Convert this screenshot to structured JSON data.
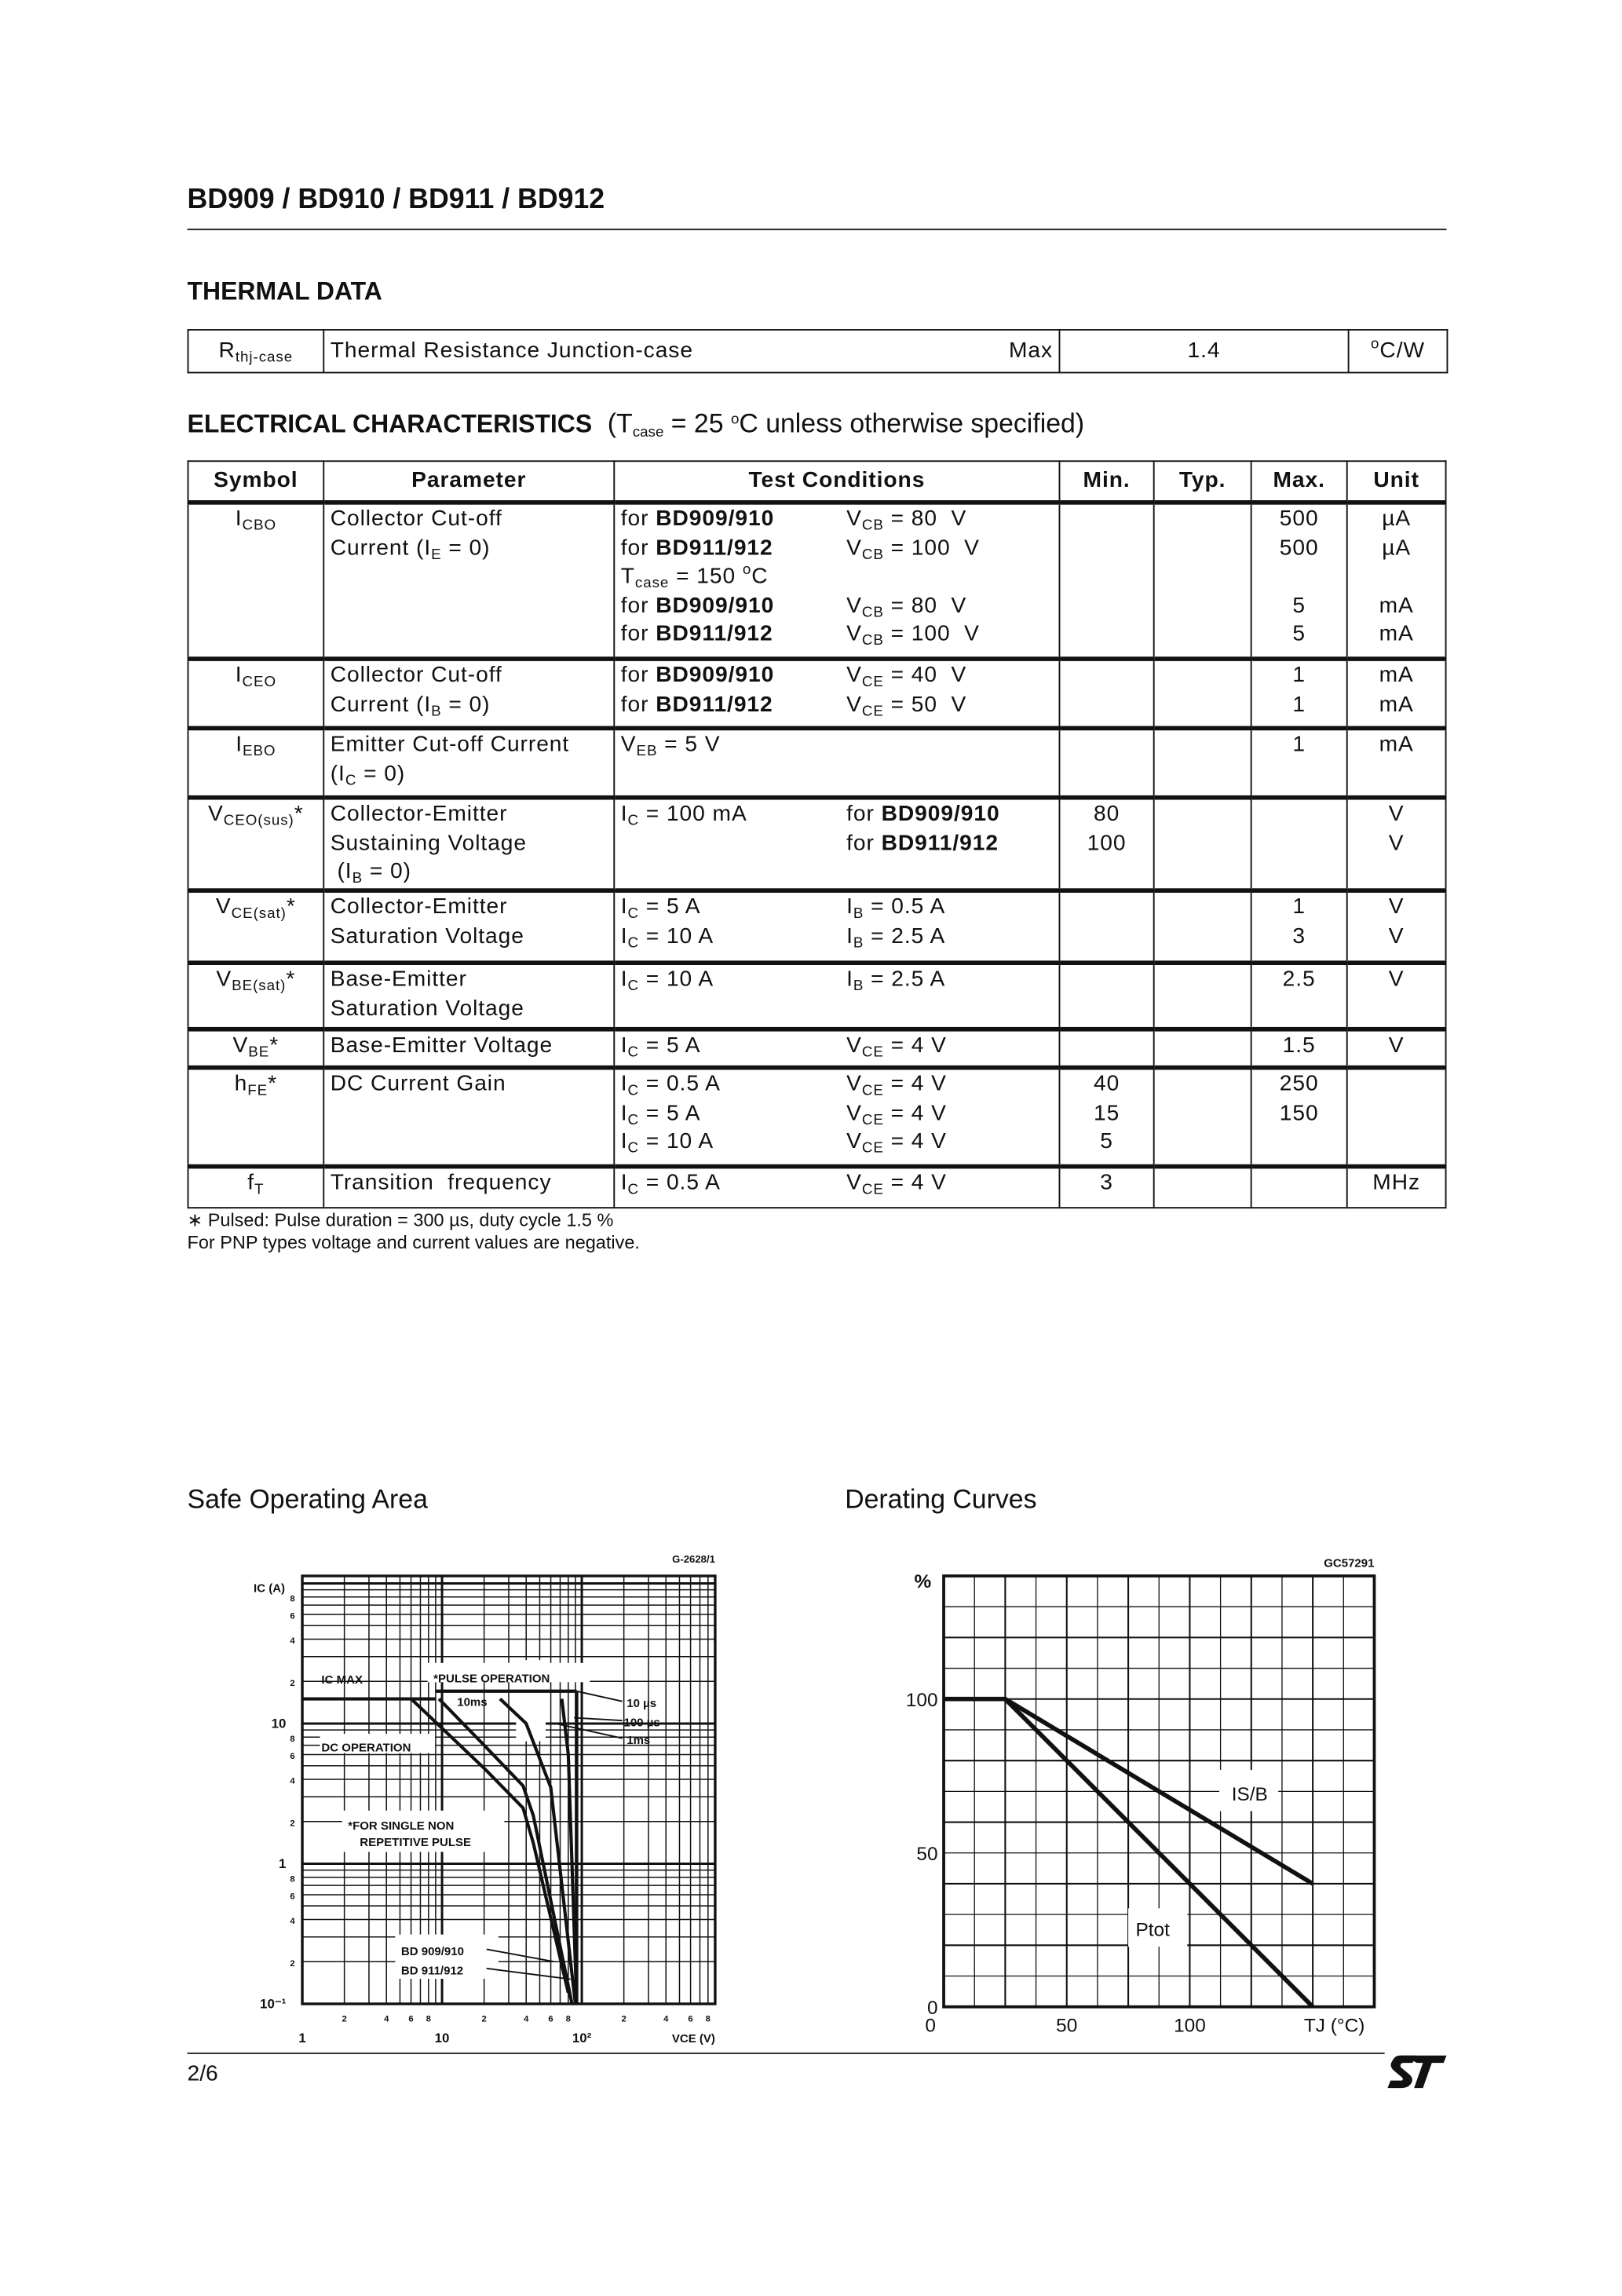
{
  "header_title": "BD909 / BD910 / BD911 / BD912",
  "thermal": {
    "title": "THERMAL  DATA",
    "symbol": [
      "R",
      {
        "sub": "thj-case"
      }
    ],
    "parameter": "Thermal  Resistance  Junction-case",
    "qualifier": "Max",
    "value": "1.4",
    "unit": [
      {
        "sup": "o"
      },
      "C/W"
    ]
  },
  "electrical": {
    "title": "ELECTRICAL  CHARACTERISTICS",
    "condition": [
      "(T",
      {
        "sub": "case"
      },
      " = 25 ",
      {
        "sup": "o"
      },
      "C unless otherwise specified)"
    ],
    "headers": [
      "Symbol",
      "Parameter",
      "Test Conditions",
      "Min.",
      "Typ.",
      "Max.",
      "Unit"
    ],
    "rows": [
      {
        "symbol": [
          "I",
          {
            "sub": "CBO"
          }
        ],
        "parameter": [
          [
            "Collector Cut-off"
          ],
          [
            "Current (I",
            {
              "sub": "E"
            },
            " = 0)"
          ]
        ],
        "conditions": [
          {
            "a": [
              "for ",
              {
                "b": "BD909/910"
              }
            ],
            "b": [
              "V",
              {
                "sub": "CB"
              },
              " = 80  V"
            ]
          },
          {
            "a": [
              "for ",
              {
                "b": "BD911/912"
              }
            ],
            "b": [
              "V",
              {
                "sub": "CB"
              },
              " = 100  V"
            ]
          },
          {
            "a": [
              "T",
              {
                "sub": "case"
              },
              " = 150 ",
              {
                "sup": "o"
              },
              "C"
            ]
          },
          {
            "a": [
              "for ",
              {
                "b": "BD909/910"
              }
            ],
            "b": [
              "V",
              {
                "sub": "CB"
              },
              " = 80  V"
            ]
          },
          {
            "a": [
              "for ",
              {
                "b": "BD911/912"
              }
            ],
            "b": [
              "V",
              {
                "sub": "CB"
              },
              " = 100  V"
            ]
          }
        ],
        "min": [],
        "typ": [],
        "max": [
          "500",
          "500",
          "",
          "5",
          "5"
        ],
        "unit": [
          "µA",
          "µA",
          "",
          "mA",
          "mA"
        ]
      },
      {
        "symbol": [
          "I",
          {
            "sub": "CEO"
          }
        ],
        "parameter": [
          [
            "Collector Cut-off"
          ],
          [
            "Current (I",
            {
              "sub": "B"
            },
            " = 0)"
          ]
        ],
        "conditions": [
          {
            "a": [
              "for ",
              {
                "b": "BD909/910"
              }
            ],
            "b": [
              "V",
              {
                "sub": "CE"
              },
              " = 40  V"
            ]
          },
          {
            "a": [
              "for ",
              {
                "b": "BD911/912"
              }
            ],
            "b": [
              "V",
              {
                "sub": "CE"
              },
              " = 50  V"
            ]
          }
        ],
        "min": [],
        "typ": [],
        "max": [
          "1",
          "1"
        ],
        "unit": [
          "mA",
          "mA"
        ]
      },
      {
        "symbol": [
          "I",
          {
            "sub": "EBO"
          }
        ],
        "parameter": [
          [
            "Emitter Cut-off Current"
          ],
          [
            "(I",
            {
              "sub": "C"
            },
            " = 0)"
          ]
        ],
        "conditions": [
          {
            "a": [
              "V",
              {
                "sub": "EB"
              },
              " = 5 V"
            ]
          }
        ],
        "min": [],
        "typ": [],
        "max": [
          "1"
        ],
        "unit": [
          "mA"
        ]
      },
      {
        "symbol": [
          "V",
          {
            "sub": "CEO(sus)"
          },
          "*"
        ],
        "parameter": [
          [
            "Collector-Emitter"
          ],
          [
            "Sustaining Voltage"
          ],
          [
            " (I",
            {
              "sub": "B"
            },
            " = 0)"
          ]
        ],
        "conditions": [
          {
            "a": [
              "I",
              {
                "sub": "C"
              },
              " = 100 mA"
            ],
            "b": [
              "for ",
              {
                "b": "BD909/910"
              }
            ]
          },
          {
            "a": [],
            "b": [
              "for ",
              {
                "b": "BD911/912"
              }
            ]
          }
        ],
        "min": [
          "80",
          "100"
        ],
        "typ": [],
        "max": [],
        "unit": [
          "V",
          "V"
        ]
      },
      {
        "symbol": [
          "V",
          {
            "sub": "CE(sat)"
          },
          "*"
        ],
        "parameter": [
          [
            "Collector-Emitter"
          ],
          [
            "Saturation Voltage"
          ]
        ],
        "conditions": [
          {
            "a": [
              "I",
              {
                "sub": "C"
              },
              " = 5 A"
            ],
            "b": [
              "I",
              {
                "sub": "B"
              },
              " = 0.5 A"
            ]
          },
          {
            "a": [
              "I",
              {
                "sub": "C"
              },
              " = 10 A"
            ],
            "b": [
              "I",
              {
                "sub": "B"
              },
              " = 2.5 A"
            ]
          }
        ],
        "min": [],
        "typ": [],
        "max": [
          "1",
          "3"
        ],
        "unit": [
          "V",
          "V"
        ]
      },
      {
        "symbol": [
          "V",
          {
            "sub": "BE(sat)"
          },
          "*"
        ],
        "parameter": [
          [
            "Base-Emitter"
          ],
          [
            "Saturation Voltage"
          ]
        ],
        "conditions": [
          {
            "a": [
              "I",
              {
                "sub": "C"
              },
              " = 10 A"
            ],
            "b": [
              "I",
              {
                "sub": "B"
              },
              " = 2.5 A"
            ]
          }
        ],
        "min": [],
        "typ": [],
        "max": [
          "2.5"
        ],
        "unit": [
          "V"
        ]
      },
      {
        "symbol": [
          "V",
          {
            "sub": "BE"
          },
          "*"
        ],
        "parameter": [
          [
            "Base-Emitter Voltage"
          ]
        ],
        "conditions": [
          {
            "a": [
              "I",
              {
                "sub": "C"
              },
              " = 5 A"
            ],
            "b": [
              "V",
              {
                "sub": "CE"
              },
              " = 4 V"
            ]
          }
        ],
        "min": [],
        "typ": [],
        "max": [
          "1.5"
        ],
        "unit": [
          "V"
        ]
      },
      {
        "symbol": [
          "h",
          {
            "sub": "FE"
          },
          "*"
        ],
        "parameter": [
          [
            "DC Current Gain"
          ]
        ],
        "conditions": [
          {
            "a": [
              "I",
              {
                "sub": "C"
              },
              " = 0.5 A"
            ],
            "b": [
              "V",
              {
                "sub": "CE"
              },
              " = 4 V"
            ]
          },
          {
            "a": [
              "I",
              {
                "sub": "C"
              },
              " = 5 A"
            ],
            "b": [
              "V",
              {
                "sub": "CE"
              },
              " = 4 V"
            ]
          },
          {
            "a": [
              "I",
              {
                "sub": "C"
              },
              " = 10 A"
            ],
            "b": [
              "V",
              {
                "sub": "CE"
              },
              " = 4 V"
            ]
          }
        ],
        "min": [
          "40",
          "15",
          "5"
        ],
        "typ": [],
        "max": [
          "250",
          "150"
        ],
        "unit": []
      },
      {
        "symbol": [
          "f",
          {
            "sub": "T"
          }
        ],
        "parameter": [
          [
            "Transition  frequency"
          ]
        ],
        "conditions": [
          {
            "a": [
              "I",
              {
                "sub": "C"
              },
              " = 0.5 A"
            ],
            "b": [
              "V",
              {
                "sub": "CE"
              },
              " = 4 V"
            ]
          }
        ],
        "min": [
          "3"
        ],
        "typ": [],
        "max": [],
        "unit": [
          "MHz"
        ]
      }
    ]
  },
  "footnotes": [
    "∗ Pulsed: Pulse duration = 300 µs, duty cycle 1.5 %",
    "For PNP types voltage and current values are negative."
  ],
  "chart_titles": {
    "soa": "Safe Operating Area",
    "derating": "Derating Curves"
  },
  "page_number": "2/6",
  "logo_text": "ST",
  "chart_data": [
    {
      "type": "line",
      "figure_code": "G-2628/1",
      "x_scale": "log",
      "y_scale": "log",
      "xlim": [
        1,
        900
      ],
      "ylim": [
        0.1,
        113
      ],
      "xlabel": "VCE (V)",
      "ylabel": "IC (A)",
      "x_ticks": {
        "major": [
          "1",
          "10",
          "10²"
        ],
        "minor": [
          "2",
          "4",
          "6",
          "8"
        ]
      },
      "y_tick_labels": [
        "8",
        "6",
        "4",
        "2",
        "10",
        "8",
        "6",
        "4",
        "2",
        "1",
        "8",
        "6",
        "4",
        "2",
        "10⁻¹"
      ],
      "grid": true,
      "annotations": [
        "IC MAX",
        "*PULSE  OPERATION",
        "10ms",
        "10 µs",
        "100 µs",
        "1ms",
        "DC  OPERATION",
        "*FOR  SINGLE  NON",
        "REPETITIVE  PULSE",
        "BD 909/910",
        "BD 911/912"
      ],
      "series": [
        {
          "name": "IC MAX",
          "points": [
            [
              1,
              15
            ],
            [
              9,
              15
            ]
          ]
        },
        {
          "name": "DC OPERATION",
          "points": [
            [
              6,
              15
            ],
            [
              20,
              4.8
            ],
            [
              38,
              2.5
            ],
            [
              45,
              1.4
            ],
            [
              80,
              0.12
            ]
          ]
        },
        {
          "name": "10ms",
          "points": [
            [
              9.5,
              15
            ],
            [
              20,
              7
            ],
            [
              38,
              3.6
            ],
            [
              45,
              2.2
            ],
            [
              85,
              0.1
            ]
          ]
        },
        {
          "name": "1ms",
          "points": [
            [
              26,
              15
            ],
            [
              40,
              10
            ],
            [
              60,
              3.5
            ],
            [
              90,
              0.1
            ]
          ]
        },
        {
          "name": "100 µs",
          "points": [
            [
              72,
              15
            ],
            [
              80,
              6
            ],
            [
              92,
              0.1
            ]
          ]
        },
        {
          "name": "10 µs",
          "points": [
            [
              92,
              17
            ],
            [
              92,
              0.1
            ]
          ]
        },
        {
          "name": "PULSE OPERATION",
          "points": [
            [
              9,
              17
            ],
            [
              92,
              17
            ]
          ]
        }
      ]
    },
    {
      "type": "line",
      "figure_code": "GC57291",
      "xlim": [
        0,
        175
      ],
      "ylim": [
        0,
        140
      ],
      "x_tick_labels": [
        "0",
        "50",
        "100"
      ],
      "x_ticks": [
        0,
        50,
        100
      ],
      "y_tick_labels": [
        "0",
        "50",
        "100"
      ],
      "y_ticks": [
        0,
        50,
        100
      ],
      "xlabel": "TJ (°C)",
      "ylabel": "%",
      "grid": true,
      "series": [
        {
          "name": "Ptot",
          "points": [
            [
              0,
              100
            ],
            [
              25,
              100
            ],
            [
              150,
              0
            ]
          ]
        },
        {
          "name": "IS/B",
          "points": [
            [
              25,
              100
            ],
            [
              150,
              40
            ]
          ]
        }
      ]
    }
  ]
}
